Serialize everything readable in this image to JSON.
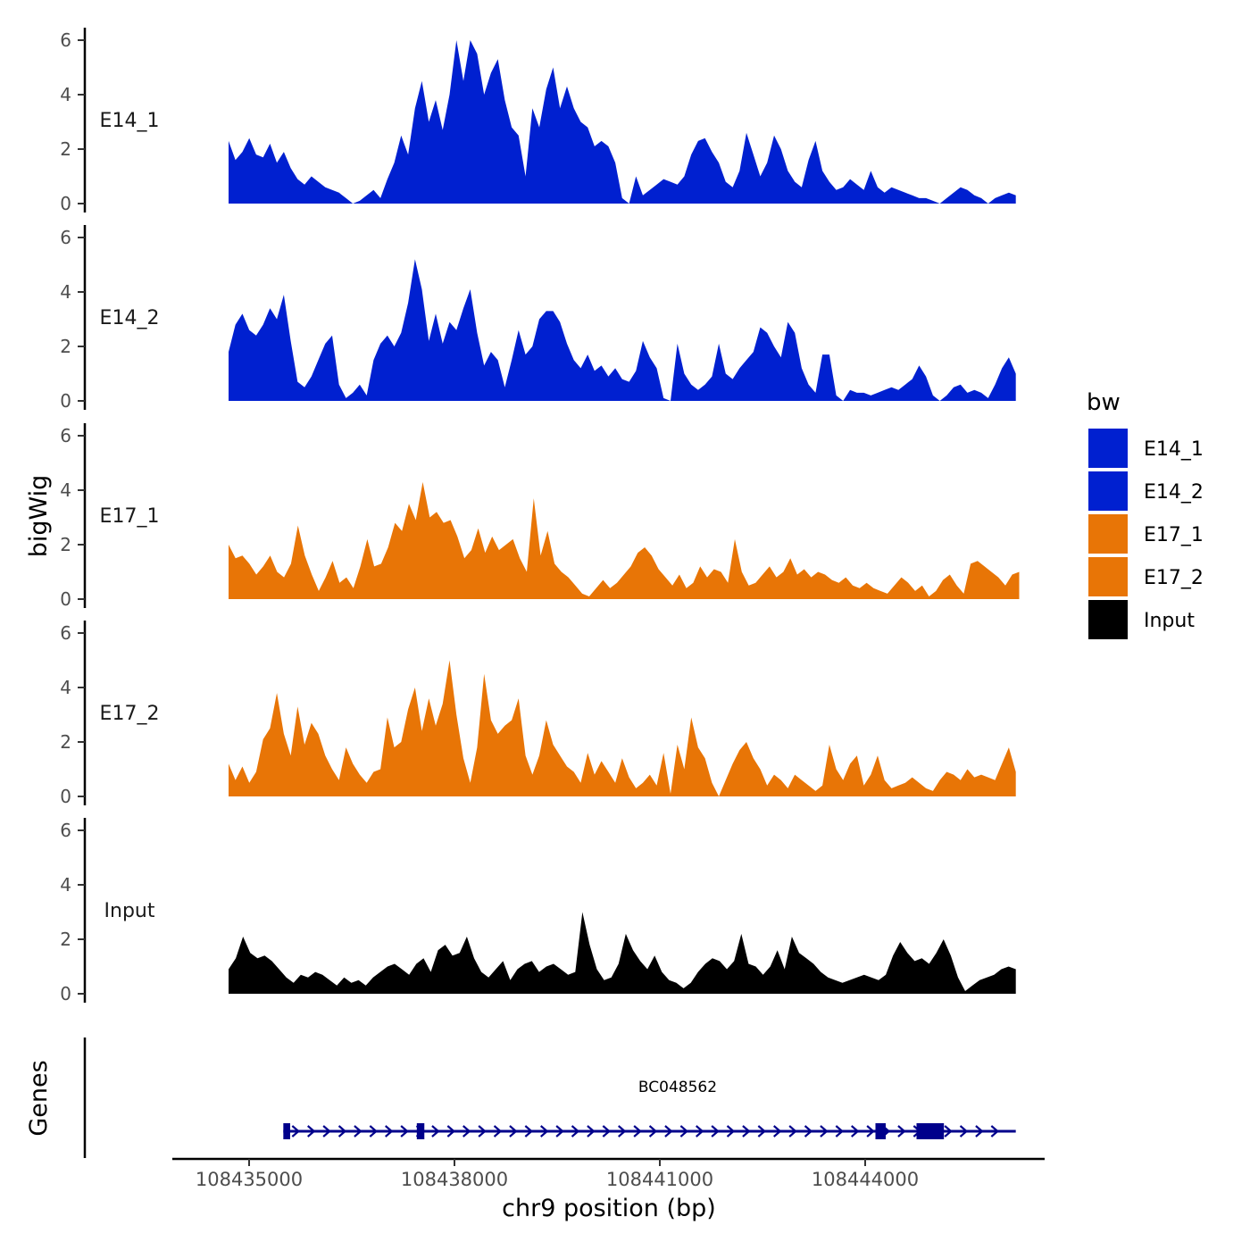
{
  "chart_data": {
    "type": "area",
    "ylabel": "bigWig",
    "xlabel": "chr9 position (bp)",
    "ylim": [
      0,
      6
    ],
    "yticks": [
      "0",
      "2",
      "4",
      "6"
    ],
    "xlim": [
      108433800,
      108446500
    ],
    "xticks": [
      {
        "value": 108435000,
        "label": "108435000"
      },
      {
        "value": 108438000,
        "label": "108438000"
      },
      {
        "value": 108441000,
        "label": "108441000"
      },
      {
        "value": 108444000,
        "label": "108444000"
      }
    ],
    "legend": {
      "title": "bw",
      "position": "right",
      "entries": [
        {
          "name": "E14_1",
          "color": "#0020D0"
        },
        {
          "name": "E14_2",
          "color": "#0020D0"
        },
        {
          "name": "E17_1",
          "color": "#E87506"
        },
        {
          "name": "E17_2",
          "color": "#E87506"
        },
        {
          "name": "Input",
          "color": "#000000"
        }
      ]
    },
    "tracks": [
      {
        "name": "E14_1",
        "color": "#0020D0",
        "x_start": 108434700,
        "x_end": 108446200,
        "values": [
          2.3,
          1.6,
          1.9,
          2.4,
          1.8,
          1.7,
          2.2,
          1.5,
          1.9,
          1.3,
          0.9,
          0.7,
          1.0,
          0.8,
          0.6,
          0.5,
          0.4,
          0.2,
          0.0,
          0.1,
          0.3,
          0.5,
          0.2,
          0.9,
          1.5,
          2.5,
          1.8,
          3.5,
          4.5,
          3.0,
          3.8,
          2.7,
          4.0,
          6.0,
          4.5,
          6.0,
          5.5,
          4.0,
          4.8,
          5.3,
          3.8,
          2.8,
          2.5,
          1.0,
          3.5,
          2.8,
          4.2,
          5.0,
          3.5,
          4.3,
          3.5,
          3.0,
          2.8,
          2.1,
          2.3,
          2.1,
          1.5,
          0.2,
          0.0,
          1.0,
          0.3,
          0.5,
          0.7,
          0.9,
          0.8,
          0.7,
          1.0,
          1.8,
          2.3,
          2.4,
          1.9,
          1.5,
          0.8,
          0.6,
          1.2,
          2.6,
          1.8,
          1.0,
          1.5,
          2.5,
          2.0,
          1.2,
          0.8,
          0.6,
          1.6,
          2.3,
          1.2,
          0.8,
          0.5,
          0.6,
          0.9,
          0.7,
          0.5,
          1.2,
          0.6,
          0.4,
          0.6,
          0.5,
          0.4,
          0.3,
          0.2,
          0.2,
          0.1,
          0.0,
          0.2,
          0.4,
          0.6,
          0.5,
          0.3,
          0.2,
          0.0,
          0.2,
          0.3,
          0.4,
          0.3
        ]
      },
      {
        "name": "E14_2",
        "color": "#0020D0",
        "x_start": 108434700,
        "x_end": 108446200,
        "values": [
          1.8,
          2.8,
          3.2,
          2.6,
          2.4,
          2.8,
          3.4,
          3.0,
          3.9,
          2.2,
          0.7,
          0.5,
          0.9,
          1.5,
          2.1,
          2.4,
          0.6,
          0.1,
          0.3,
          0.6,
          0.2,
          1.5,
          2.1,
          2.4,
          2.0,
          2.5,
          3.6,
          5.2,
          4.1,
          2.2,
          3.2,
          2.1,
          2.9,
          2.6,
          3.4,
          4.1,
          2.5,
          1.3,
          1.8,
          1.5,
          0.5,
          1.5,
          2.6,
          1.7,
          2.0,
          3.0,
          3.3,
          3.3,
          2.9,
          2.1,
          1.5,
          1.2,
          1.7,
          1.1,
          1.3,
          0.9,
          1.2,
          0.8,
          0.7,
          1.1,
          2.2,
          1.6,
          1.2,
          0.1,
          0.0,
          2.1,
          1.0,
          0.6,
          0.4,
          0.6,
          0.9,
          2.1,
          1.0,
          0.8,
          1.2,
          1.5,
          1.8,
          2.7,
          2.5,
          2.0,
          1.6,
          2.9,
          2.5,
          1.2,
          0.6,
          0.3,
          1.7,
          1.7,
          0.2,
          0.0,
          0.4,
          0.3,
          0.3,
          0.2,
          0.3,
          0.4,
          0.5,
          0.4,
          0.6,
          0.8,
          1.3,
          0.9,
          0.2,
          0.0,
          0.2,
          0.5,
          0.6,
          0.3,
          0.4,
          0.3,
          0.1,
          0.6,
          1.2,
          1.6,
          1.0
        ]
      },
      {
        "name": "E17_1",
        "color": "#E87506",
        "x_start": 108434700,
        "x_end": 108446250,
        "values": [
          2.0,
          1.5,
          1.6,
          1.3,
          0.9,
          1.2,
          1.6,
          1.0,
          0.8,
          1.3,
          2.7,
          1.6,
          0.9,
          0.3,
          0.8,
          1.4,
          0.6,
          0.8,
          0.4,
          1.2,
          2.2,
          1.2,
          1.3,
          1.9,
          2.8,
          2.5,
          3.5,
          2.9,
          4.3,
          3.0,
          3.2,
          2.8,
          2.9,
          2.3,
          1.5,
          1.8,
          2.6,
          1.7,
          2.3,
          1.8,
          2.0,
          2.2,
          1.5,
          1.0,
          3.7,
          1.6,
          2.5,
          1.3,
          1.0,
          0.8,
          0.5,
          0.2,
          0.1,
          0.4,
          0.7,
          0.4,
          0.6,
          0.9,
          1.2,
          1.7,
          1.9,
          1.6,
          1.1,
          0.8,
          0.5,
          0.9,
          0.4,
          0.6,
          1.2,
          0.8,
          1.1,
          1.0,
          0.6,
          2.2,
          1.0,
          0.5,
          0.6,
          0.9,
          1.2,
          0.8,
          1.0,
          1.5,
          0.9,
          1.1,
          0.8,
          1.0,
          0.9,
          0.7,
          0.6,
          0.8,
          0.5,
          0.4,
          0.6,
          0.4,
          0.3,
          0.2,
          0.5,
          0.8,
          0.6,
          0.3,
          0.5,
          0.1,
          0.3,
          0.7,
          0.9,
          0.5,
          0.2,
          1.3,
          1.4,
          1.2,
          1.0,
          0.8,
          0.5,
          0.9,
          1.0
        ]
      },
      {
        "name": "E17_2",
        "color": "#E87506",
        "x_start": 108434700,
        "x_end": 108446200,
        "values": [
          1.2,
          0.6,
          1.1,
          0.5,
          0.9,
          2.1,
          2.5,
          3.8,
          2.3,
          1.5,
          3.3,
          1.9,
          2.7,
          2.3,
          1.5,
          1.0,
          0.6,
          1.8,
          1.2,
          0.8,
          0.5,
          0.9,
          1.0,
          2.9,
          1.8,
          2.0,
          3.2,
          4.0,
          2.4,
          3.6,
          2.6,
          3.4,
          5.0,
          3.0,
          1.4,
          0.5,
          1.8,
          4.5,
          2.8,
          2.3,
          2.6,
          2.8,
          3.6,
          1.5,
          0.8,
          1.5,
          2.8,
          1.9,
          1.5,
          1.1,
          0.9,
          0.5,
          1.6,
          0.8,
          1.3,
          0.9,
          0.5,
          1.4,
          0.7,
          0.3,
          0.5,
          0.8,
          0.4,
          1.6,
          0.1,
          1.9,
          1.0,
          2.9,
          1.8,
          1.4,
          0.5,
          0.0,
          0.6,
          1.2,
          1.7,
          2.0,
          1.4,
          1.0,
          0.4,
          0.8,
          0.6,
          0.3,
          0.8,
          0.6,
          0.4,
          0.2,
          0.4,
          1.9,
          1.0,
          0.6,
          1.2,
          1.5,
          0.4,
          0.8,
          1.5,
          0.6,
          0.3,
          0.4,
          0.5,
          0.7,
          0.5,
          0.3,
          0.2,
          0.6,
          0.9,
          0.8,
          0.6,
          1.0,
          0.7,
          0.8,
          0.7,
          0.6,
          1.2,
          1.8,
          0.9
        ]
      },
      {
        "name": "Input",
        "color": "#000000",
        "x_start": 108434700,
        "x_end": 108446200,
        "values": [
          0.9,
          1.3,
          2.1,
          1.5,
          1.3,
          1.4,
          1.2,
          0.9,
          0.6,
          0.4,
          0.7,
          0.6,
          0.8,
          0.7,
          0.5,
          0.3,
          0.6,
          0.4,
          0.5,
          0.3,
          0.6,
          0.8,
          1.0,
          1.1,
          0.9,
          0.7,
          1.1,
          1.3,
          0.8,
          1.6,
          1.8,
          1.4,
          1.5,
          2.1,
          1.3,
          0.8,
          0.6,
          0.9,
          1.2,
          0.5,
          0.9,
          1.1,
          1.2,
          0.8,
          1.0,
          1.1,
          0.9,
          0.7,
          0.8,
          3.0,
          1.8,
          0.9,
          0.5,
          0.6,
          1.1,
          2.2,
          1.6,
          1.2,
          0.9,
          1.4,
          0.8,
          0.5,
          0.4,
          0.2,
          0.4,
          0.8,
          1.1,
          1.3,
          1.2,
          0.9,
          1.2,
          2.2,
          1.1,
          1.0,
          0.7,
          1.0,
          1.6,
          0.9,
          2.1,
          1.5,
          1.3,
          1.1,
          0.8,
          0.6,
          0.5,
          0.4,
          0.5,
          0.6,
          0.7,
          0.6,
          0.5,
          0.7,
          1.4,
          1.9,
          1.5,
          1.2,
          1.3,
          1.1,
          1.5,
          2.0,
          1.4,
          0.6,
          0.1,
          0.3,
          0.5,
          0.6,
          0.7,
          0.9,
          1.0,
          0.9
        ]
      }
    ],
    "genes_panel": {
      "ylabel": "Genes",
      "gene": {
        "name": "BC048562",
        "color": "#00008B",
        "start": 108435500,
        "end": 108446200,
        "strand": "+",
        "exons": [
          [
            108435500,
            108435600
          ],
          [
            108437450,
            108437560
          ],
          [
            108444150,
            108444300
          ],
          [
            108444750,
            108445150
          ]
        ]
      }
    }
  }
}
